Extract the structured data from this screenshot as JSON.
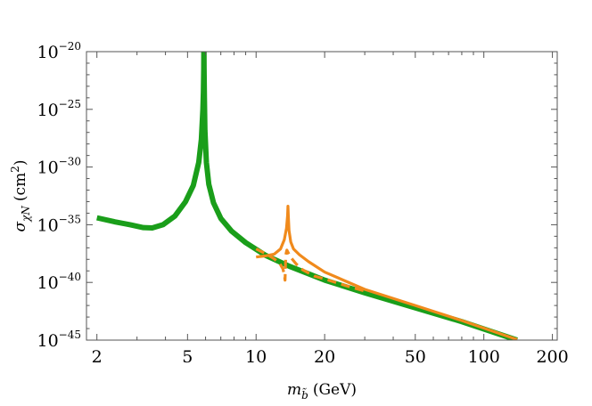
{
  "chart_data": {
    "type": "line",
    "xlabel_parts": {
      "symbol": "m",
      "sub": "b̃",
      "unit": "(GeV)"
    },
    "ylabel_parts": {
      "symbol": "σ",
      "sub": "χN",
      "unit_pre": "(cm",
      "unit_exp": "2",
      "unit_post": ")"
    },
    "x_scale": "log",
    "y_scale": "log",
    "xlim": [
      1.8,
      210
    ],
    "ylim": [
      1e-45,
      1e-20
    ],
    "x_ticks": [
      {
        "value": 2,
        "label": "2"
      },
      {
        "value": 5,
        "label": "5"
      },
      {
        "value": 10,
        "label": "10"
      },
      {
        "value": 20,
        "label": "20"
      },
      {
        "value": 50,
        "label": "50"
      },
      {
        "value": 100,
        "label": "100"
      },
      {
        "value": 200,
        "label": "200"
      }
    ],
    "y_ticks": [
      {
        "value": 1e-20,
        "base": "10",
        "exp": "−20"
      },
      {
        "value": 1e-25,
        "base": "10",
        "exp": "−25"
      },
      {
        "value": 1e-30,
        "base": "10",
        "exp": "−30"
      },
      {
        "value": 1e-35,
        "base": "10",
        "exp": "−35"
      },
      {
        "value": 1e-40,
        "base": "10",
        "exp": "−40"
      },
      {
        "value": 1e-45,
        "base": "10",
        "exp": "−45"
      }
    ],
    "grid": false,
    "legend": "none",
    "series": [
      {
        "color": "#1a9e1a",
        "style": "solid",
        "width": "thick",
        "x": [
          2.0,
          2.4,
          2.8,
          3.2,
          3.5,
          3.9,
          4.4,
          4.9,
          5.3,
          5.6,
          5.75,
          5.84,
          5.87,
          5.89,
          5.9,
          5.91,
          5.93,
          5.96,
          6.05,
          6.2,
          6.5,
          7.0,
          7.8,
          9.0,
          11.0,
          14.0,
          20.0,
          30.0,
          50.0,
          80.0,
          140.0
        ],
        "y": [
          -34.4,
          -34.75,
          -35.0,
          -35.25,
          -35.28,
          -35.0,
          -34.25,
          -33.0,
          -31.6,
          -29.6,
          -27.6,
          -25.0,
          -23.5,
          -21.5,
          -19.0,
          -21.5,
          -24.0,
          -26.8,
          -29.6,
          -31.5,
          -33.1,
          -34.45,
          -35.55,
          -36.55,
          -37.65,
          -38.6,
          -39.8,
          -40.9,
          -42.2,
          -43.4,
          -45.0
        ]
      },
      {
        "color": "#f08a1c",
        "style": "solid",
        "width": "medium",
        "x": [
          10.0,
          11.0,
          12.0,
          12.8,
          13.3,
          13.6,
          13.75,
          13.8,
          13.85,
          13.95,
          14.2,
          14.6,
          15.5,
          17.0,
          20.0,
          30.0,
          50.0,
          80.0,
          140.0
        ],
        "y": [
          -37.8,
          -37.7,
          -37.55,
          -37.1,
          -36.3,
          -35.3,
          -34.2,
          -33.4,
          -34.2,
          -35.5,
          -36.5,
          -37.1,
          -37.6,
          -38.2,
          -39.1,
          -40.6,
          -42.0,
          -43.3,
          -44.95
        ]
      },
      {
        "color": "#f08a1c",
        "style": "dashed",
        "width": "medium",
        "x": [
          10.0,
          11.0,
          12.0,
          12.7,
          13.1,
          13.3,
          13.4,
          13.5,
          13.65,
          13.9,
          14.3,
          15.0,
          16.0,
          18.0,
          20.0,
          25.0,
          30.0
        ],
        "y": [
          -37.1,
          -37.5,
          -37.95,
          -38.35,
          -38.8,
          -39.3,
          -39.8,
          -37.6,
          -37.2,
          -37.5,
          -37.9,
          -38.4,
          -38.9,
          -39.45,
          -39.7,
          -40.3,
          -40.75
        ]
      }
    ]
  }
}
